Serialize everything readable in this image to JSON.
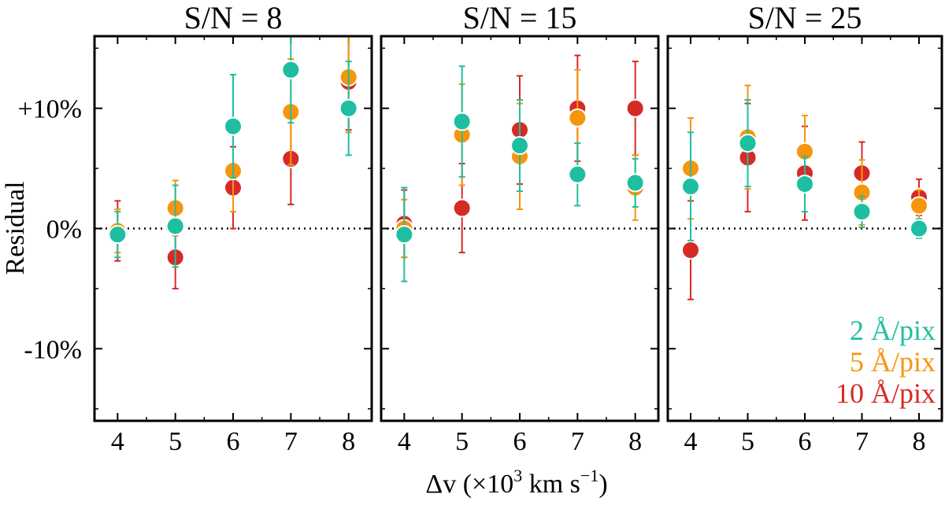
{
  "chart_data": {
    "type": "scatter",
    "xlabel": "Δv (×10",
    "xlabel_sup": "3",
    "xlabel_unit": " km s",
    "xlabel_unit_sup": "−1",
    "xlabel_close": ")",
    "ylabel": "Residual",
    "xlim": [
      3.6,
      8.4
    ],
    "ylim": [
      -16,
      16
    ],
    "x_ticks": [
      4,
      5,
      6,
      7,
      8
    ],
    "x_tick_labels": [
      "4",
      "5",
      "6",
      "7",
      "8"
    ],
    "y_ticks": [
      -10,
      0,
      10
    ],
    "y_tick_labels": [
      "-10%",
      "0%",
      "+10%"
    ],
    "reference_line": {
      "y": 0,
      "style": "dotted"
    },
    "legend": {
      "placement": "lower-right",
      "entries": [
        "2 Å/pix",
        "5 Å/pix",
        "10 Å/pix"
      ]
    },
    "colors": {
      "2 Å/pix": "#1ebfa0",
      "5 Å/pix": "#f7950c",
      "10 Å/pix": "#d62a27"
    },
    "panels": [
      {
        "title": "S/N = 8",
        "series": [
          {
            "name": "10 Å/pix",
            "x": [
              4,
              5,
              6,
              7,
              8
            ],
            "y": [
              -0.2,
              -2.4,
              3.4,
              5.8,
              12.2
            ],
            "yerr": [
              2.5,
              2.6,
              3.4,
              3.8,
              4.0
            ]
          },
          {
            "name": "5 Å/pix",
            "x": [
              4,
              5,
              6,
              7,
              8
            ],
            "y": [
              -0.2,
              1.7,
              4.8,
              9.7,
              12.6
            ],
            "yerr": [
              1.8,
              2.3,
              3.4,
              4.4,
              4.6
            ]
          },
          {
            "name": "2 Å/pix",
            "x": [
              4,
              5,
              6,
              7,
              8
            ],
            "y": [
              -0.5,
              0.2,
              8.5,
              13.2,
              10.0
            ],
            "yerr": [
              1.9,
              3.4,
              4.3,
              4.4,
              3.9
            ]
          }
        ]
      },
      {
        "title": "S/N = 15",
        "series": [
          {
            "name": "10 Å/pix",
            "x": [
              4,
              5,
              6,
              7,
              8
            ],
            "y": [
              0.4,
              1.7,
              8.2,
              10.0,
              10.0
            ],
            "yerr": [
              2.8,
              3.7,
              4.5,
              4.4,
              3.9
            ]
          },
          {
            "name": "5 Å/pix",
            "x": [
              4,
              5,
              6,
              7,
              8
            ],
            "y": [
              0.0,
              7.8,
              6.0,
              9.2,
              3.4
            ],
            "yerr": [
              2.4,
              4.2,
              4.4,
              4.0,
              2.7
            ]
          },
          {
            "name": "2 Å/pix",
            "x": [
              4,
              5,
              6,
              7,
              8
            ],
            "y": [
              -0.5,
              8.9,
              6.9,
              4.5,
              3.8
            ],
            "yerr": [
              3.9,
              4.6,
              3.8,
              2.6,
              2.0
            ]
          }
        ]
      },
      {
        "title": "S/N = 25",
        "series": [
          {
            "name": "10 Å/pix",
            "x": [
              4,
              5,
              6,
              7,
              8
            ],
            "y": [
              -1.8,
              5.9,
              4.6,
              4.6,
              2.6
            ],
            "yerr": [
              4.1,
              4.5,
              3.9,
              2.6,
              1.5
            ]
          },
          {
            "name": "5 Å/pix",
            "x": [
              4,
              5,
              6,
              7,
              8
            ],
            "y": [
              5.0,
              7.6,
              6.4,
              3.0,
              1.9
            ],
            "yerr": [
              4.2,
              4.3,
              3.0,
              2.7,
              1.3
            ]
          },
          {
            "name": "2 Å/pix",
            "x": [
              4,
              5,
              6,
              7,
              8
            ],
            "y": [
              3.5,
              7.1,
              3.7,
              1.4,
              0.0
            ],
            "yerr": [
              4.5,
              3.6,
              2.3,
              1.3,
              0.8
            ]
          }
        ]
      }
    ]
  }
}
